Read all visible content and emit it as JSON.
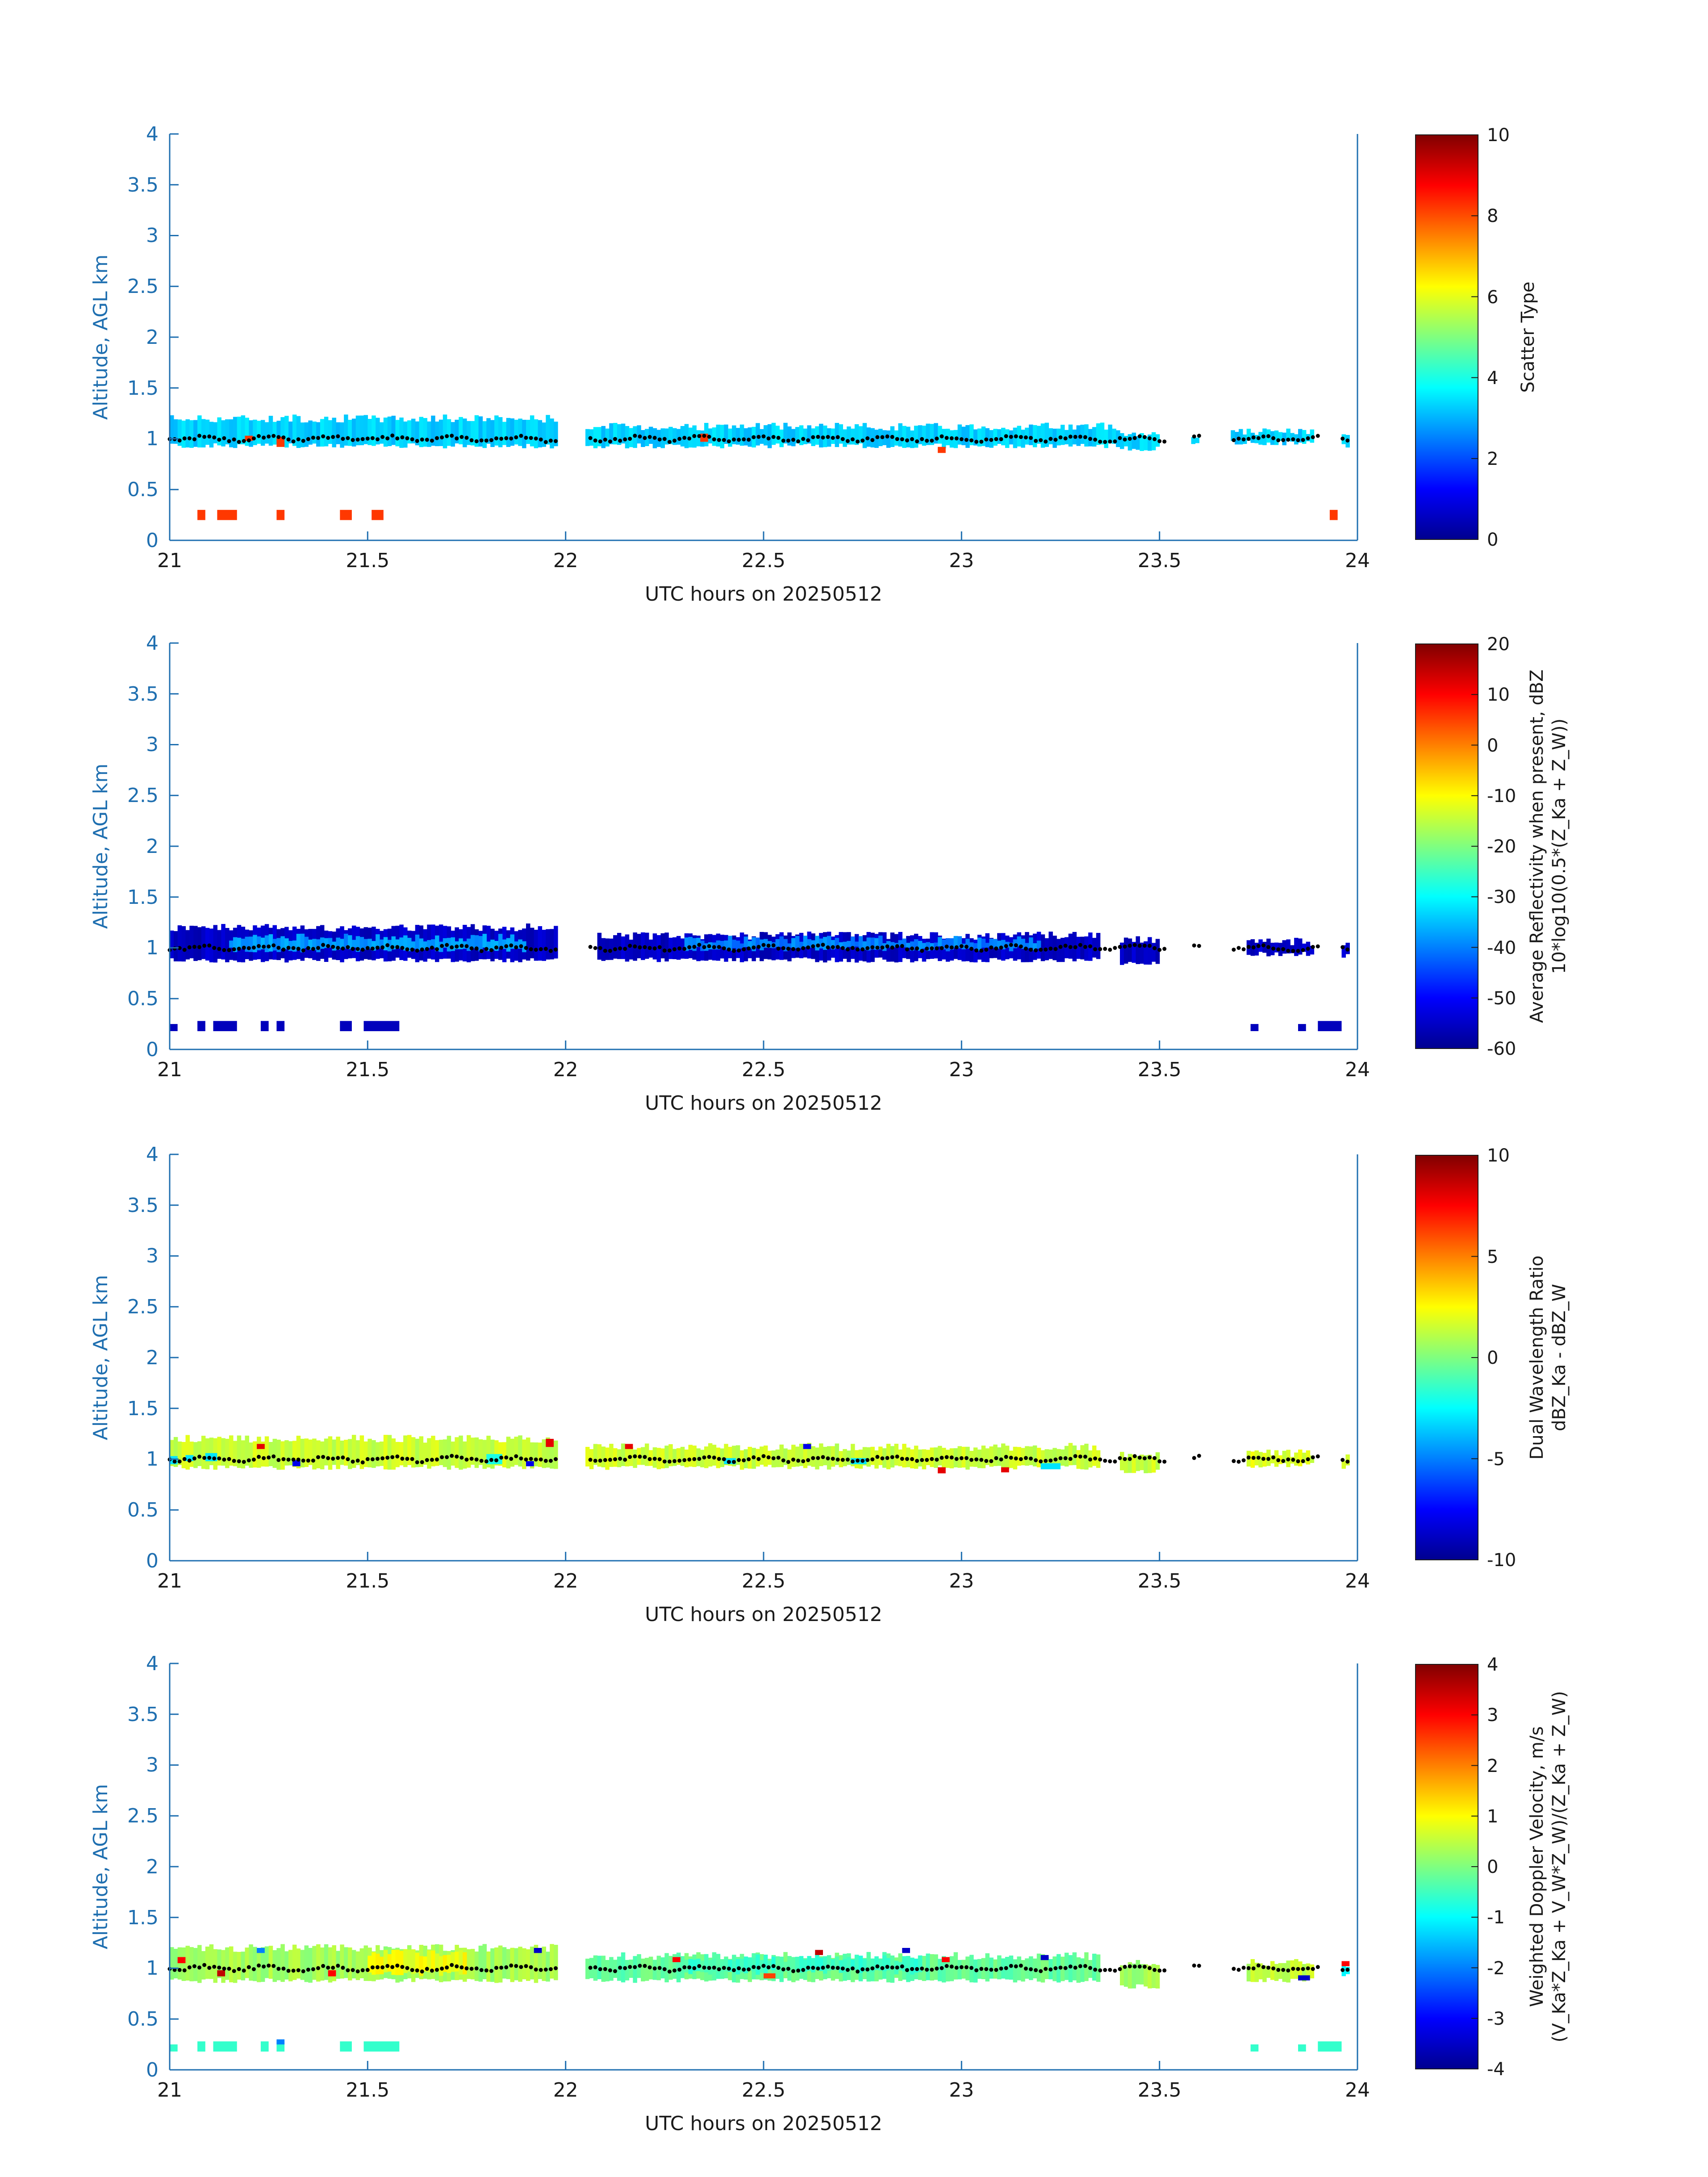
{
  "figure": {
    "colors": {
      "axis": "#1f6fb0",
      "text": "#1a1a1a",
      "marker": "#000000"
    }
  },
  "chart_data": [
    {
      "type": "heatmap",
      "id": "scatter-type",
      "xlabel": "UTC hours on 20250512",
      "ylabel": "Altitude, AGL km",
      "xlim": [
        21,
        24
      ],
      "ylim": [
        0,
        4
      ],
      "xticks": [
        "21",
        "21.5",
        "22",
        "22.5",
        "23",
        "23.5",
        "24"
      ],
      "yticks": [
        "0",
        "0.5",
        "1",
        "1.5",
        "2",
        "2.5",
        "3",
        "3.5",
        "4"
      ],
      "colorbar": {
        "title_lines": [
          "Scatter Type"
        ],
        "range": [
          0,
          10
        ],
        "ticks": [
          "0",
          "2",
          "4",
          "6",
          "8",
          "10"
        ]
      },
      "bands": [
        {
          "x": [
            21.0,
            21.98
          ],
          "y": [
            0.93,
            1.2
          ],
          "value": 3.3
        },
        {
          "x": [
            22.05,
            23.4
          ],
          "y": [
            0.93,
            1.12
          ],
          "value": 3.3
        },
        {
          "x": [
            23.4,
            23.5
          ],
          "y": [
            0.9,
            1.05
          ],
          "value": 3.3
        },
        {
          "x": [
            23.58,
            23.6
          ],
          "y": [
            0.94,
            1.05
          ],
          "value": 3.3
        },
        {
          "x": [
            23.68,
            23.89
          ],
          "y": [
            0.96,
            1.07
          ],
          "value": 3.3
        },
        {
          "x": [
            23.96,
            23.98
          ],
          "y": [
            0.93,
            1.02
          ],
          "value": 3.3
        }
      ],
      "cells": [
        {
          "x": 21.07,
          "y": 0.2,
          "w": 0.02,
          "h": 0.1,
          "value": 8.2
        },
        {
          "x": 21.12,
          "y": 0.2,
          "w": 0.05,
          "h": 0.1,
          "value": 8.2
        },
        {
          "x": 21.27,
          "y": 0.2,
          "w": 0.02,
          "h": 0.1,
          "value": 8.2
        },
        {
          "x": 21.43,
          "y": 0.2,
          "w": 0.03,
          "h": 0.1,
          "value": 8.2
        },
        {
          "x": 21.51,
          "y": 0.2,
          "w": 0.03,
          "h": 0.1,
          "value": 8.2
        },
        {
          "x": 23.93,
          "y": 0.2,
          "w": 0.02,
          "h": 0.1,
          "value": 8.2
        },
        {
          "x": 21.19,
          "y": 0.98,
          "w": 0.02,
          "h": 0.05,
          "value": 8.2
        },
        {
          "x": 21.27,
          "y": 0.92,
          "w": 0.02,
          "h": 0.1,
          "value": 8.2
        },
        {
          "x": 22.34,
          "y": 0.97,
          "w": 0.02,
          "h": 0.08,
          "value": 8.2
        },
        {
          "x": 22.94,
          "y": 0.86,
          "w": 0.02,
          "h": 0.06,
          "value": 8.2
        }
      ],
      "markers": {
        "x_start": 21.0,
        "x_end": 23.98,
        "base": 1.0,
        "amplitude": 0.03
      }
    },
    {
      "type": "heatmap",
      "id": "reflectivity",
      "xlabel": "UTC hours on 20250512",
      "ylabel": "Altitude, AGL km",
      "xlim": [
        21,
        24
      ],
      "ylim": [
        0,
        4
      ],
      "xticks": [
        "21",
        "21.5",
        "22",
        "22.5",
        "23",
        "23.5",
        "24"
      ],
      "yticks": [
        "0",
        "0.5",
        "1",
        "1.5",
        "2",
        "2.5",
        "3",
        "3.5",
        "4"
      ],
      "colorbar": {
        "title_lines": [
          "Average Reflectivity when present, dBZ",
          "10*log10(0.5*(Z_Ka + Z_W))"
        ],
        "range": [
          -60,
          20
        ],
        "ticks": [
          "-60",
          "-50",
          "-40",
          "-30",
          "-20",
          "-10",
          "0",
          "10",
          "20"
        ]
      },
      "bands": [
        {
          "x": [
            21.0,
            21.98
          ],
          "y": [
            0.88,
            1.2
          ],
          "value": -55
        },
        {
          "x": [
            22.08,
            23.35
          ],
          "y": [
            0.88,
            1.12
          ],
          "value": -55
        },
        {
          "x": [
            21.15,
            21.9
          ],
          "y": [
            0.98,
            1.1
          ],
          "value": -38
        },
        {
          "x": [
            22.3,
            23.2
          ],
          "y": [
            0.99,
            1.08
          ],
          "value": -40
        },
        {
          "x": [
            23.4,
            23.5
          ],
          "y": [
            0.85,
            1.08
          ],
          "value": -55
        },
        {
          "x": [
            23.72,
            23.89
          ],
          "y": [
            0.94,
            1.06
          ],
          "value": -55
        },
        {
          "x": [
            23.96,
            23.98
          ],
          "y": [
            0.92,
            1.05
          ],
          "value": -55
        }
      ],
      "cells": [
        {
          "x": 21.0,
          "y": 0.18,
          "w": 0.02,
          "h": 0.07,
          "value": -56
        },
        {
          "x": 21.07,
          "y": 0.18,
          "w": 0.02,
          "h": 0.1,
          "value": -56
        },
        {
          "x": 21.11,
          "y": 0.18,
          "w": 0.06,
          "h": 0.1,
          "value": -56
        },
        {
          "x": 21.23,
          "y": 0.18,
          "w": 0.02,
          "h": 0.1,
          "value": -56
        },
        {
          "x": 21.27,
          "y": 0.18,
          "w": 0.02,
          "h": 0.1,
          "value": -56
        },
        {
          "x": 21.43,
          "y": 0.18,
          "w": 0.03,
          "h": 0.1,
          "value": -56
        },
        {
          "x": 21.49,
          "y": 0.18,
          "w": 0.09,
          "h": 0.1,
          "value": -56
        },
        {
          "x": 23.73,
          "y": 0.18,
          "w": 0.02,
          "h": 0.07,
          "value": -56
        },
        {
          "x": 23.85,
          "y": 0.18,
          "w": 0.02,
          "h": 0.07,
          "value": -56
        },
        {
          "x": 23.9,
          "y": 0.18,
          "w": 0.06,
          "h": 0.1,
          "value": -56
        }
      ],
      "markers": {
        "x_start": 21.0,
        "x_end": 23.98,
        "base": 1.0,
        "amplitude": 0.03
      }
    },
    {
      "type": "heatmap",
      "id": "dual-wavelength-ratio",
      "xlabel": "UTC hours on 20250512",
      "ylabel": "Altitude, AGL km",
      "xlim": [
        21,
        24
      ],
      "ylim": [
        0,
        4
      ],
      "xticks": [
        "21",
        "21.5",
        "22",
        "22.5",
        "23",
        "23.5",
        "24"
      ],
      "yticks": [
        "0",
        "0.5",
        "1",
        "1.5",
        "2",
        "2.5",
        "3",
        "3.5",
        "4"
      ],
      "colorbar": {
        "title_lines": [
          "Dual Wavelength Ratio",
          "dBZ_Ka - dBZ_W"
        ],
        "range": [
          -10,
          10
        ],
        "ticks": [
          "-10",
          "-5",
          "0",
          "5",
          "10"
        ]
      },
      "bands": [
        {
          "x": [
            21.0,
            21.98
          ],
          "y": [
            0.92,
            1.2
          ],
          "value": 1.5
        },
        {
          "x": [
            22.05,
            23.35
          ],
          "y": [
            0.92,
            1.12
          ],
          "value": 1.5
        },
        {
          "x": [
            23.4,
            23.5
          ],
          "y": [
            0.88,
            1.05
          ],
          "value": 1.5
        },
        {
          "x": [
            23.72,
            23.89
          ],
          "y": [
            0.94,
            1.06
          ],
          "value": 1.8
        },
        {
          "x": [
            23.96,
            23.98
          ],
          "y": [
            0.92,
            1.02
          ],
          "value": 1.8
        }
      ],
      "cells": [
        {
          "x": 21.0,
          "y": 0.95,
          "w": 0.02,
          "h": 0.08,
          "value": -3
        },
        {
          "x": 21.04,
          "y": 0.98,
          "w": 0.02,
          "h": 0.06,
          "value": -3
        },
        {
          "x": 21.09,
          "y": 0.98,
          "w": 0.03,
          "h": 0.08,
          "value": -3
        },
        {
          "x": 21.22,
          "y": 1.1,
          "w": 0.02,
          "h": 0.05,
          "value": 8
        },
        {
          "x": 21.31,
          "y": 0.93,
          "w": 0.02,
          "h": 0.06,
          "value": -8
        },
        {
          "x": 21.8,
          "y": 0.95,
          "w": 0.04,
          "h": 0.1,
          "value": -2
        },
        {
          "x": 21.9,
          "y": 0.93,
          "w": 0.02,
          "h": 0.05,
          "value": -8
        },
        {
          "x": 22.15,
          "y": 1.1,
          "w": 0.02,
          "h": 0.05,
          "value": 8
        },
        {
          "x": 22.4,
          "y": 0.95,
          "w": 0.03,
          "h": 0.06,
          "value": -3
        },
        {
          "x": 22.6,
          "y": 1.1,
          "w": 0.02,
          "h": 0.05,
          "value": -8
        },
        {
          "x": 22.72,
          "y": 0.95,
          "w": 0.04,
          "h": 0.06,
          "value": -3
        },
        {
          "x": 22.94,
          "y": 0.86,
          "w": 0.02,
          "h": 0.06,
          "value": 8
        },
        {
          "x": 23.1,
          "y": 0.87,
          "w": 0.02,
          "h": 0.05,
          "value": 8
        },
        {
          "x": 23.2,
          "y": 0.9,
          "w": 0.05,
          "h": 0.06,
          "value": -3
        },
        {
          "x": 21.95,
          "y": 1.12,
          "w": 0.02,
          "h": 0.08,
          "value": 8
        }
      ],
      "markers": {
        "x_start": 21.0,
        "x_end": 23.98,
        "base": 1.0,
        "amplitude": 0.03
      }
    },
    {
      "type": "heatmap",
      "id": "doppler-velocity",
      "xlabel": "UTC hours on 20250512",
      "ylabel": "Altitude, AGL km",
      "xlim": [
        21,
        24
      ],
      "ylim": [
        0,
        4
      ],
      "xticks": [
        "21",
        "21.5",
        "22",
        "22.5",
        "23",
        "23.5",
        "24"
      ],
      "yticks": [
        "0",
        "0.5",
        "1",
        "1.5",
        "2",
        "2.5",
        "3",
        "3.5",
        "4"
      ],
      "colorbar": {
        "title_lines": [
          "Weighted Doppler Velocity, m/s",
          "(V_Ka*Z_Ka + V_W*Z_W)/(Z_Ka + Z_W)"
        ],
        "range": [
          -4,
          4
        ],
        "ticks": [
          "-4",
          "-3",
          "-2",
          "-1",
          "0",
          "1",
          "2",
          "3",
          "4"
        ]
      },
      "bands": [
        {
          "x": [
            21.0,
            21.98
          ],
          "y": [
            0.88,
            1.2
          ],
          "value": 0.3
        },
        {
          "x": [
            22.05,
            23.35
          ],
          "y": [
            0.88,
            1.12
          ],
          "value": -0.2
        },
        {
          "x": [
            21.5,
            21.75
          ],
          "y": [
            0.95,
            1.15
          ],
          "value": 0.9
        },
        {
          "x": [
            22.3,
            22.9
          ],
          "y": [
            0.96,
            1.1
          ],
          "value": -0.5
        },
        {
          "x": [
            23.4,
            23.5
          ],
          "y": [
            0.82,
            1.05
          ],
          "value": 0.3
        },
        {
          "x": [
            23.72,
            23.89
          ],
          "y": [
            0.88,
            1.06
          ],
          "value": 0.5
        },
        {
          "x": [
            23.96,
            23.98
          ],
          "y": [
            0.92,
            1.05
          ],
          "value": -1
        }
      ],
      "cells": [
        {
          "x": 21.0,
          "y": 0.18,
          "w": 0.02,
          "h": 0.07,
          "value": -0.6
        },
        {
          "x": 21.07,
          "y": 0.18,
          "w": 0.02,
          "h": 0.1,
          "value": -0.6
        },
        {
          "x": 21.11,
          "y": 0.18,
          "w": 0.06,
          "h": 0.1,
          "value": -0.6
        },
        {
          "x": 21.23,
          "y": 0.18,
          "w": 0.02,
          "h": 0.1,
          "value": -0.6
        },
        {
          "x": 21.27,
          "y": 0.18,
          "w": 0.02,
          "h": 0.1,
          "value": -0.6
        },
        {
          "x": 21.27,
          "y": 0.25,
          "w": 0.02,
          "h": 0.05,
          "value": -2
        },
        {
          "x": 21.43,
          "y": 0.18,
          "w": 0.03,
          "h": 0.1,
          "value": -0.6
        },
        {
          "x": 21.49,
          "y": 0.18,
          "w": 0.09,
          "h": 0.1,
          "value": -0.6
        },
        {
          "x": 23.73,
          "y": 0.18,
          "w": 0.02,
          "h": 0.07,
          "value": -0.6
        },
        {
          "x": 23.85,
          "y": 0.18,
          "w": 0.02,
          "h": 0.07,
          "value": -0.6
        },
        {
          "x": 23.9,
          "y": 0.18,
          "w": 0.06,
          "h": 0.1,
          "value": -0.6
        },
        {
          "x": 21.02,
          "y": 1.05,
          "w": 0.02,
          "h": 0.06,
          "value": 3
        },
        {
          "x": 21.12,
          "y": 0.92,
          "w": 0.02,
          "h": 0.06,
          "value": 3.5
        },
        {
          "x": 21.22,
          "y": 1.15,
          "w": 0.02,
          "h": 0.05,
          "value": -2
        },
        {
          "x": 21.4,
          "y": 0.92,
          "w": 0.02,
          "h": 0.06,
          "value": 3
        },
        {
          "x": 21.92,
          "y": 1.15,
          "w": 0.02,
          "h": 0.05,
          "value": -3.5
        },
        {
          "x": 22.27,
          "y": 1.06,
          "w": 0.02,
          "h": 0.05,
          "value": 3
        },
        {
          "x": 22.5,
          "y": 0.9,
          "w": 0.03,
          "h": 0.05,
          "value": 2.5
        },
        {
          "x": 22.63,
          "y": 1.13,
          "w": 0.02,
          "h": 0.05,
          "value": 3.5
        },
        {
          "x": 22.85,
          "y": 1.15,
          "w": 0.02,
          "h": 0.05,
          "value": -3.5
        },
        {
          "x": 22.95,
          "y": 1.06,
          "w": 0.02,
          "h": 0.05,
          "value": 3
        },
        {
          "x": 23.2,
          "y": 1.08,
          "w": 0.02,
          "h": 0.05,
          "value": -3.5
        },
        {
          "x": 23.85,
          "y": 0.88,
          "w": 0.03,
          "h": 0.05,
          "value": -3.5
        },
        {
          "x": 23.96,
          "y": 1.02,
          "w": 0.02,
          "h": 0.05,
          "value": 3
        }
      ],
      "markers": {
        "x_start": 21.0,
        "x_end": 23.98,
        "base": 1.0,
        "amplitude": 0.03
      }
    }
  ]
}
